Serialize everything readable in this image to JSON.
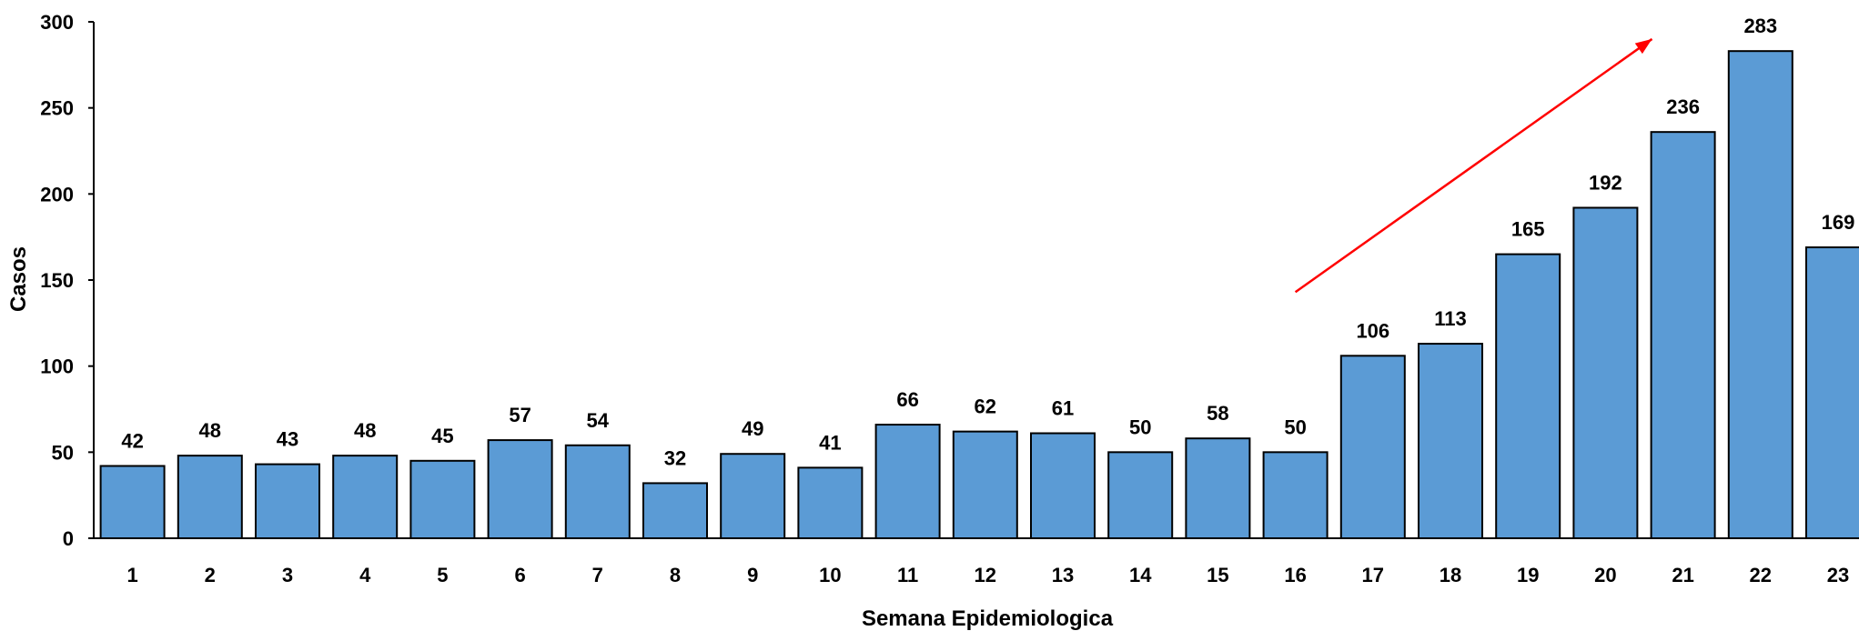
{
  "chart_data": {
    "type": "bar",
    "title": "",
    "xlabel": "Semana Epidemiologica",
    "ylabel": "Casos",
    "ylim": [
      0,
      300
    ],
    "yticks": [
      0,
      50,
      100,
      150,
      200,
      250,
      300
    ],
    "grid": false,
    "categories": [
      "1",
      "2",
      "3",
      "4",
      "5",
      "6",
      "7",
      "8",
      "9",
      "10",
      "11",
      "12",
      "13",
      "14",
      "15",
      "16",
      "17",
      "18",
      "19",
      "20",
      "21",
      "22",
      "23"
    ],
    "values": [
      42,
      48,
      43,
      48,
      45,
      57,
      54,
      32,
      49,
      41,
      66,
      62,
      61,
      50,
      58,
      50,
      106,
      113,
      165,
      192,
      236,
      283,
      169
    ],
    "data_labels": [
      "42",
      "48",
      "43",
      "48",
      "45",
      "57",
      "54",
      "32",
      "49",
      "41",
      "66",
      "62",
      "61",
      "50",
      "58",
      "50",
      "106",
      "113",
      "165",
      "192",
      "236",
      "283",
      "169"
    ],
    "annotation": {
      "type": "arrow",
      "from": {
        "x": 16,
        "y": 143
      },
      "to": {
        "x": 20.6,
        "y": 290
      }
    },
    "colors": {
      "bar_fill": "#5b9bd5",
      "bar_stroke": "#000000",
      "arrow": "#ff0000"
    }
  }
}
